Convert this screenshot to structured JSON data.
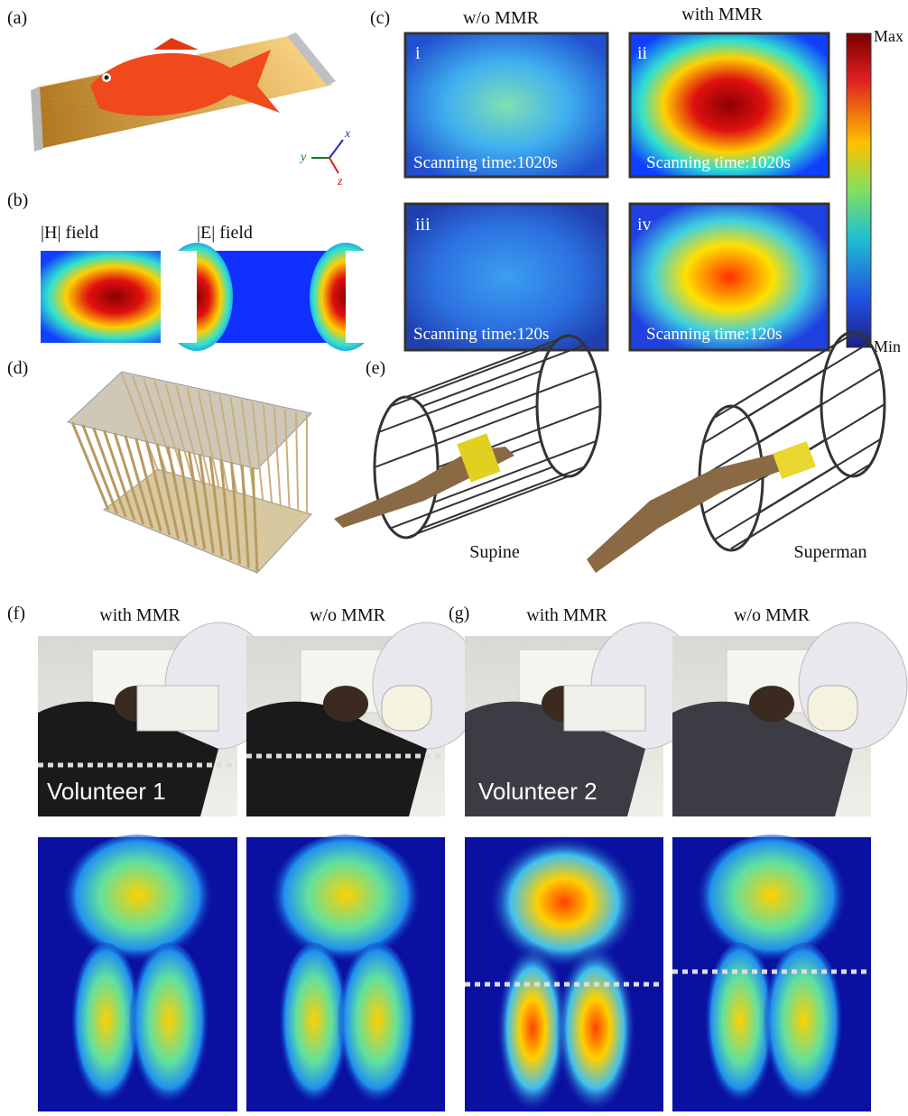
{
  "panels": {
    "a": {
      "label": "(a)",
      "axes": [
        "x",
        "y",
        "z"
      ]
    },
    "b": {
      "label": "(b)",
      "fields": [
        "|H| field",
        "|E| field"
      ]
    },
    "c": {
      "label": "(c)",
      "columns": [
        "w/o MMR",
        "with MMR"
      ],
      "images": [
        {
          "index": "i",
          "caption": "Scanning time:1020s"
        },
        {
          "index": "ii",
          "caption": "Scanning time:1020s"
        },
        {
          "index": "iii",
          "caption": "Scanning time:120s"
        },
        {
          "index": "iv",
          "caption": "Scanning time:120s"
        }
      ],
      "colorbar": {
        "max": "Max",
        "min": "Min"
      }
    },
    "d": {
      "label": "(d)"
    },
    "e": {
      "label": "(e)",
      "poses": [
        "Supine",
        "Superman"
      ]
    },
    "f": {
      "label": "(f)",
      "columns": [
        "with MMR",
        "w/o MMR"
      ],
      "volunteer": "Volunteer 1"
    },
    "g": {
      "label": "(g)",
      "columns": [
        "with MMR",
        "w/o MMR"
      ],
      "volunteer": "Volunteer 2"
    }
  }
}
